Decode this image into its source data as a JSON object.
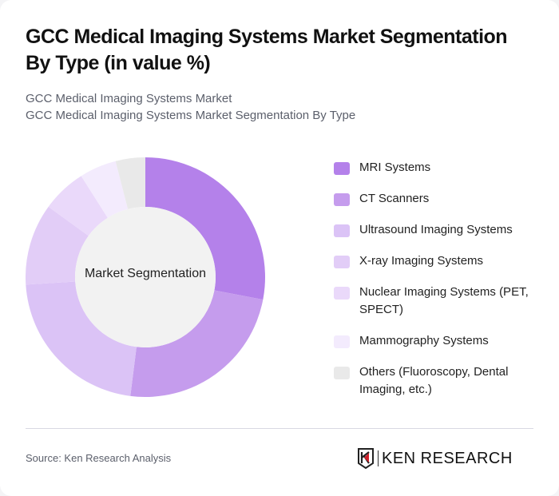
{
  "header": {
    "title": "GCC Medical Imaging Systems Market Segmentation By Type (in value %)",
    "subtitle_line1": "GCC Medical Imaging Systems Market",
    "subtitle_line2": "GCC Medical Imaging Systems Market Segmentation By Type"
  },
  "chart": {
    "center_label": "Market Segmentation"
  },
  "legend": [
    {
      "label": "MRI Systems",
      "color": "#b481ea"
    },
    {
      "label": "CT Scanners",
      "color": "#c59ced"
    },
    {
      "label": "Ultrasound Imaging Systems",
      "color": "#dbc3f6"
    },
    {
      "label": "X-ray Imaging Systems",
      "color": "#e2cdf7"
    },
    {
      "label": "Nuclear Imaging Systems (PET, SPECT)",
      "color": "#ead9fa"
    },
    {
      "label": "Mammography Systems",
      "color": "#f3ebfd"
    },
    {
      "label": "Others (Fluoroscopy, Dental Imaging, etc.)",
      "color": "#e9e9e9"
    }
  ],
  "footer": {
    "source": "Source: Ken Research Analysis",
    "logo_text": "KEN RESEARCH"
  },
  "chart_data": {
    "type": "pie",
    "subtype": "donut",
    "title": "GCC Medical Imaging Systems Market Segmentation By Type (in value %)",
    "center_label": "Market Segmentation",
    "categories": [
      "MRI Systems",
      "CT Scanners",
      "Ultrasound Imaging Systems",
      "X-ray Imaging Systems",
      "Nuclear Imaging Systems (PET, SPECT)",
      "Mammography Systems",
      "Others (Fluoroscopy, Dental Imaging, etc.)"
    ],
    "values": [
      28,
      24,
      22,
      11,
      6,
      5,
      4
    ],
    "colors": [
      "#b481ea",
      "#c59ced",
      "#dbc3f6",
      "#e2cdf7",
      "#ead9fa",
      "#f3ebfd",
      "#e9e9e9"
    ],
    "legend_position": "right",
    "unit": "%"
  }
}
